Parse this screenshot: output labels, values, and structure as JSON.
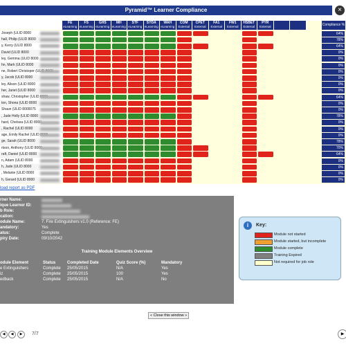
{
  "header": {
    "title": "Pyramid™ Learner Compliance"
  },
  "table": {
    "columns": [
      {
        "code": "FE",
        "kind": "eLearning"
      },
      {
        "code": "FS",
        "kind": "eLearning"
      },
      {
        "code": "GHS",
        "kind": "eLearning"
      },
      {
        "code": "MH",
        "kind": "eLearning"
      },
      {
        "code": "STF",
        "kind": "eLearning"
      },
      {
        "code": "SYDA",
        "kind": "eLearning"
      },
      {
        "code": "WAH",
        "kind": "eLearning"
      },
      {
        "code": "COM",
        "kind": "External"
      },
      {
        "code": "CPET",
        "kind": "External"
      },
      {
        "code": "FA1",
        "kind": "External"
      },
      {
        "code": "FW1",
        "kind": "External"
      },
      {
        "code": "HSBET",
        "kind": "External"
      },
      {
        "code": "PYR",
        "kind": "External"
      }
    ],
    "compliance_header": "Compliance %",
    "rows": [
      {
        "name": "Joseph (ULID 8000",
        "compliance": "64%",
        "cells": [
          "#2e8b2e",
          "#2e8b2e",
          "#2e8b2e",
          "#2e8b2e",
          "#2e8b2e",
          "#2e8b2e",
          "#2e8b2e",
          "#e0241b",
          "#e0241b",
          null,
          null,
          "#e0241b",
          "#e0241b"
        ]
      },
      {
        "name": "hall, Philip (ULID 8000",
        "compliance": "78%",
        "cells": [
          "#2e8b2e",
          "#2e8b2e",
          "#2e8b2e",
          "#2e8b2e",
          "#2e8b2e",
          "#2e8b2e",
          "#2e8b2e",
          "#e0241b",
          null,
          null,
          null,
          "#e0241b",
          null
        ]
      },
      {
        "name": "y, Kerry (ULID 8000",
        "compliance": "64%",
        "cells": [
          "#2e8b2e",
          "#2e8b2e",
          "#2e8b2e",
          "#2e8b2e",
          "#2e8b2e",
          "#2e8b2e",
          "#2e8b2e",
          "#e0241b",
          "#e0241b",
          null,
          null,
          "#e0241b",
          "#e0241b"
        ]
      },
      {
        "name": "David (ULID 8000",
        "compliance": "0%",
        "cells": [
          "#e0241b",
          "#e0241b",
          "#e0241b",
          "#e0241b",
          "#e0241b",
          "#e0241b",
          "#e0241b",
          "#e0241b",
          null,
          null,
          null,
          "#e0241b",
          null
        ]
      },
      {
        "name": "ley, Gemma (ULID 8000",
        "compliance": "0%",
        "cells": [
          "#e0241b",
          "#e0241b",
          "#e0241b",
          "#e0241b",
          "#e0241b",
          "#e0241b",
          "#e0241b",
          "#e0241b",
          null,
          null,
          null,
          "#e0241b",
          null
        ]
      },
      {
        "name": "hn, Mark (ULID 8000",
        "compliance": "0%",
        "cells": [
          "#e0241b",
          "#e0241b",
          "#e0241b",
          "#e0241b",
          "#e0241b",
          "#e0241b",
          "#e0241b",
          "#e0241b",
          null,
          null,
          null,
          "#e0241b",
          null
        ]
      },
      {
        "name": "ne, Robert Christoper (ULID 8000",
        "compliance": "0%",
        "cells": [
          "#e0241b",
          "#e0241b",
          "#e0241b",
          "#e0241b",
          "#e0241b",
          "#e0241b",
          "#e0241b",
          "#e0241b",
          null,
          null,
          null,
          "#e0241b",
          null
        ]
      },
      {
        "name": "y, Jacob (ULID 8000",
        "compliance": "0%",
        "cells": [
          "#e0241b",
          "#e0241b",
          "#e0241b",
          "#e0241b",
          "#e0241b",
          "#e0241b",
          "#e0241b",
          "#e0241b",
          null,
          null,
          null,
          "#e0241b",
          null
        ]
      },
      {
        "name": "ley, Alison (ULID 8000",
        "compliance": "0%",
        "cells": [
          "#e0241b",
          "#e0241b",
          "#e0241b",
          "#e0241b",
          "#e0241b",
          "#e0241b",
          "#e0241b",
          "#e0241b",
          null,
          null,
          null,
          "#e0241b",
          null
        ]
      },
      {
        "name": "her, Janet (ULID 8000",
        "compliance": "0%",
        "cells": [
          "#e0241b",
          "#e0241b",
          "#e0241b",
          "#e0241b",
          "#e0241b",
          "#e0241b",
          "#e0241b",
          "#e0241b",
          null,
          null,
          null,
          "#e0241b",
          null
        ]
      },
      {
        "name": "shaw, Christopher (ULID 8000",
        "compliance": "64%",
        "cells": [
          "#2e8b2e",
          "#2e8b2e",
          "#2e8b2e",
          "#2e8b2e",
          "#2e8b2e",
          "#2e8b2e",
          "#2e8b2e",
          "#e0241b",
          "#e0241b",
          null,
          null,
          "#e0241b",
          "#e0241b"
        ]
      },
      {
        "name": "ton, Shona (ULID 8000",
        "compliance": "0%",
        "cells": [
          "#e0241b",
          "#e0241b",
          "#e0241b",
          "#e0241b",
          "#e0241b",
          "#e0241b",
          "#e0241b",
          "#e0241b",
          null,
          null,
          null,
          "#e0241b",
          null
        ]
      },
      {
        "name": "Shaun (ULID 8000075",
        "compliance": "0%",
        "cells": [
          "#e0241b",
          "#e0241b",
          "#e0241b",
          "#e0241b",
          "#e0241b",
          "#e0241b",
          "#e0241b",
          "#e0241b",
          null,
          null,
          null,
          "#e0241b",
          null
        ]
      },
      {
        "name": ", Jade Holly (ULID 8000",
        "compliance": "78%",
        "cells": [
          "#2e8b2e",
          "#2e8b2e",
          "#2e8b2e",
          "#2e8b2e",
          "#2e8b2e",
          "#2e8b2e",
          "#2e8b2e",
          "#e0241b",
          null,
          null,
          null,
          "#e0241b",
          null
        ]
      },
      {
        "name": "hard, Chelsea (ULID 8000",
        "compliance": "0%",
        "cells": [
          "#e0241b",
          "#e0241b",
          "#e0241b",
          "#e0241b",
          "#e0241b",
          "#e0241b",
          "#e0241b",
          "#e0241b",
          null,
          null,
          null,
          "#e0241b",
          null
        ]
      },
      {
        "name": ", Rachel (ULID 8000",
        "compliance": "0%",
        "cells": [
          "#e0241b",
          "#e0241b",
          "#e0241b",
          "#e0241b",
          "#e0241b",
          "#e0241b",
          "#e0241b",
          "#e0241b",
          null,
          null,
          null,
          "#e0241b",
          null
        ]
      },
      {
        "name": "age, Emily Rachel (ULID 8000",
        "compliance": "0%",
        "cells": [
          "#e0241b",
          "#e0241b",
          "#e0241b",
          "#e0241b",
          "#e0241b",
          "#e0241b",
          "#e0241b",
          "#e0241b",
          null,
          null,
          null,
          "#e0241b",
          null
        ]
      },
      {
        "name": "ge, Sarah (ULID 8000",
        "compliance": "78%",
        "cells": [
          "#2e8b2e",
          "#2e8b2e",
          "#2e8b2e",
          "#2e8b2e",
          "#2e8b2e",
          "#2e8b2e",
          "#2e8b2e",
          "#e0241b",
          null,
          null,
          null,
          "#e0241b",
          null
        ]
      },
      {
        "name": "rtson, Anthony (ULID 8000",
        "compliance": "70%",
        "cells": [
          "#2e8b2e",
          "#2e8b2e",
          "#2e8b2e",
          "#2e8b2e",
          "#2e8b2e",
          "#2e8b2e",
          "#2e8b2e",
          "#e0241b",
          "#e0241b",
          null,
          null,
          "#e0241b",
          null
        ]
      },
      {
        "name": "raft, Daniel (ULID 8000",
        "compliance": "64%",
        "cells": [
          "#2e8b2e",
          "#2e8b2e",
          "#2e8b2e",
          "#2e8b2e",
          "#2e8b2e",
          "#2e8b2e",
          "#2e8b2e",
          "#e0241b",
          "#e0241b",
          null,
          null,
          "#e0241b",
          "#e0241b"
        ]
      },
      {
        "name": "n, Adam (ULID 8000",
        "compliance": "0%",
        "cells": [
          "#e0241b",
          "#e0241b",
          "#e0241b",
          "#e0241b",
          "#e0241b",
          "#e0241b",
          "#e0241b",
          "#e0241b",
          null,
          null,
          null,
          "#e0241b",
          null
        ]
      },
      {
        "name": "h, Jade (ULID 8000",
        "compliance": "0%",
        "cells": [
          "#e0241b",
          "#e0241b",
          "#e0241b",
          "#e0241b",
          "#e0241b",
          "#e0241b",
          "#e0241b",
          "#e0241b",
          null,
          null,
          null,
          "#e0241b",
          null
        ]
      },
      {
        "name": ", Melanie (ULID 8000",
        "compliance": "0%",
        "cells": [
          "#e0241b",
          "#e0241b",
          "#e0241b",
          "#e0241b",
          "#e0241b",
          "#e0241b",
          "#e0241b",
          "#e0241b",
          null,
          null,
          null,
          "#e0241b",
          null
        ]
      },
      {
        "name": "h, Gerard (ULID 8000",
        "compliance": "0%",
        "cells": [
          "#e0241b",
          "#e0241b",
          "#e0241b",
          "#e0241b",
          "#e0241b",
          "#e0241b",
          "#e0241b",
          "#e0241b",
          null,
          null,
          null,
          "#e0241b",
          null
        ]
      }
    ]
  },
  "download_link": "load report as PDF",
  "details": {
    "fields": [
      {
        "label": "rner Name:"
      },
      {
        "label": "ique Learner ID:"
      },
      {
        "label": "b Role:"
      },
      {
        "label": "cation:"
      },
      {
        "label": "odule Name:",
        "value": "7. Fire Extinguishers v1.0 (Reference: FE)"
      },
      {
        "label": "andatory:",
        "value": "Yes"
      },
      {
        "label": "atus:",
        "value": "Complete"
      },
      {
        "label": "piry Date:",
        "value": "09/10/2042"
      }
    ]
  },
  "overview": {
    "title": "Training Module Elements Overview",
    "headers": [
      "odule Element",
      "Status",
      "Completed Date",
      "Quiz Score (%)",
      "Mandatory"
    ],
    "rows": [
      [
        "e Extinguishers",
        "Complete",
        "25/05/2015",
        "N/A",
        "Yes"
      ],
      [
        "iz",
        "Complete",
        "25/05/2015",
        "100",
        "Yes"
      ],
      [
        "edback",
        "Complete",
        "25/05/2015",
        "N/A",
        "No"
      ]
    ]
  },
  "key": {
    "title": "Key:",
    "items": [
      {
        "label": "Module not started",
        "color": "#e0241b"
      },
      {
        "label": "Module started, but incomplete",
        "color": "#f0a030"
      },
      {
        "label": "Module complete",
        "color": "#2e8b2e"
      },
      {
        "label": "Training Expired",
        "color": "#808080"
      },
      {
        "label": "Not required for job role",
        "color": "#ffffcc"
      }
    ]
  },
  "close_button": "« Close this window »",
  "pager": "7/7"
}
